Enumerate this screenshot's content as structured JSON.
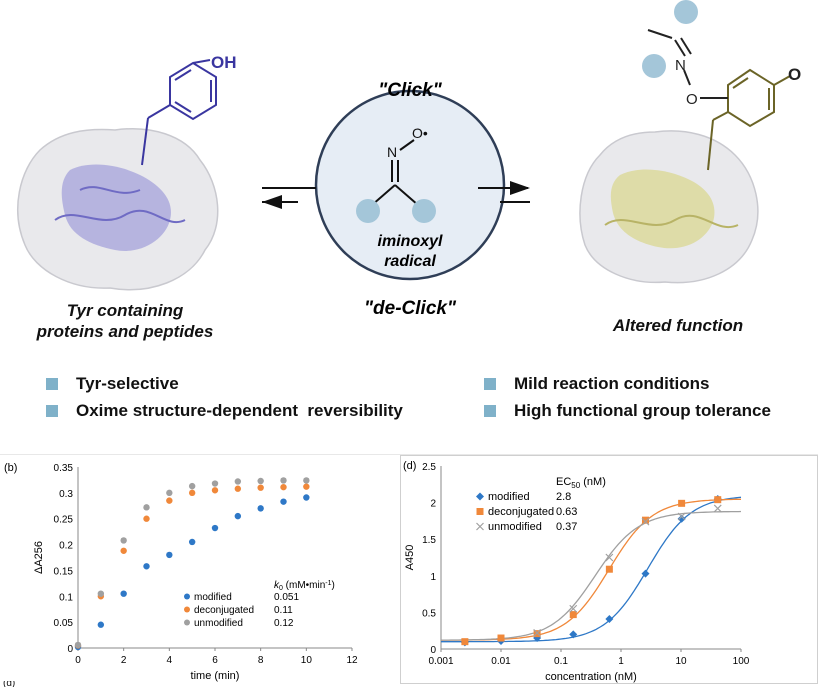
{
  "scheme": {
    "left_caption_line1": "Tyr containing",
    "left_caption_line2": "proteins and peptides",
    "click_label": "\"Click\"",
    "declick_label": "\"de-Click\"",
    "radical_line1": "iminoxyl",
    "radical_line2": "radical",
    "right_caption": "Altered function",
    "oh_label": "OH",
    "n_label": "N",
    "o_label": "O",
    "o_dot_label": "O•",
    "n_label_right": "N",
    "o_label_right": "O",
    "o_ketone_label": "O"
  },
  "bullets": [
    {
      "text": "Tyr-selective"
    },
    {
      "text": "Oxime structure-dependent  reversibility"
    },
    {
      "text": "Mild reaction conditions"
    },
    {
      "text": "High functional group tolerance"
    }
  ],
  "colors": {
    "protein_left": "#8d89d6",
    "protein_right": "#d9d68c",
    "bullet": "#7fb1c9",
    "modified": "#2e78c7",
    "deconjugated": "#f0883a",
    "unmodified": "#a0a0a0"
  },
  "chart_data": [
    {
      "panel_label": "(b)",
      "type": "scatter",
      "xlabel": "time (min)",
      "ylabel": "ΔA256",
      "xlim": [
        0,
        12
      ],
      "ylim": [
        0,
        0.35
      ],
      "xticks": [
        "0",
        "2",
        "4",
        "6",
        "8",
        "10",
        "12"
      ],
      "yticks": [
        "0",
        "0.05",
        "0.1",
        "0.15",
        "0.2",
        "0.25",
        "0.3",
        "0.35"
      ],
      "legend_header": "k",
      "legend_header_sub": "0",
      "legend_header_unit": " (mM•min",
      "legend_header_sup": "-1",
      "legend_header_end": ")",
      "series": [
        {
          "name": "modified",
          "value_label": "0.051",
          "x": [
            0,
            1,
            2,
            3,
            4,
            5,
            6,
            7,
            8,
            9,
            10
          ],
          "y": [
            0.002,
            0.045,
            0.105,
            0.158,
            0.18,
            0.205,
            0.232,
            0.255,
            0.27,
            0.283,
            0.291
          ]
        },
        {
          "name": "deconjugated",
          "value_label": "0.11",
          "x": [
            0,
            1,
            2,
            3,
            4,
            5,
            6,
            7,
            8,
            9,
            10
          ],
          "y": [
            0.005,
            0.1,
            0.188,
            0.25,
            0.285,
            0.3,
            0.305,
            0.308,
            0.31,
            0.311,
            0.312
          ]
        },
        {
          "name": "unmodified",
          "value_label": "0.12",
          "x": [
            0,
            1,
            2,
            3,
            4,
            5,
            6,
            7,
            8,
            9,
            10
          ],
          "y": [
            0.006,
            0.105,
            0.208,
            0.272,
            0.3,
            0.313,
            0.318,
            0.322,
            0.323,
            0.324,
            0.324
          ]
        }
      ]
    },
    {
      "panel_label": "(d)",
      "type": "scatter",
      "xscale": "log",
      "xlabel": "concentration (nM)",
      "ylabel": "A450",
      "xlim": [
        0.001,
        100
      ],
      "ylim": [
        0,
        2.5
      ],
      "xticks": [
        "0.001",
        "0.01",
        "0.1",
        "1",
        "10",
        "100"
      ],
      "yticks": [
        "0",
        "0.5",
        "1",
        "1.5",
        "2",
        "2.5"
      ],
      "legend_header": "EC",
      "legend_header_sub": "50",
      "legend_header_unit": " (nM)",
      "series": [
        {
          "name": "modified",
          "marker": "diamond",
          "value_label": "2.8",
          "x": [
            0.0025,
            0.01,
            0.04,
            0.16,
            0.64,
            2.56,
            10.24,
            40.96
          ],
          "y": [
            0.09,
            0.11,
            0.15,
            0.2,
            0.41,
            1.03,
            1.78,
            2.05
          ]
        },
        {
          "name": "deconjugated",
          "marker": "square",
          "value_label": "0.63",
          "x": [
            0.0025,
            0.01,
            0.04,
            0.16,
            0.64,
            2.56,
            10.24,
            40.96
          ],
          "y": [
            0.1,
            0.15,
            0.21,
            0.47,
            1.09,
            1.76,
            1.99,
            2.04
          ]
        },
        {
          "name": "unmodified",
          "marker": "x",
          "value_label": "0.37",
          "x": [
            0.04,
            0.16,
            0.64,
            2.56,
            10.24,
            40.96
          ],
          "y": [
            0.22,
            0.55,
            1.25,
            1.74,
            1.81,
            1.92
          ]
        }
      ],
      "fits": [
        {
          "series": "modified",
          "bottom": 0.1,
          "top": 2.1,
          "ec50": 2.8,
          "hill": 1.2
        },
        {
          "series": "deconjugated",
          "bottom": 0.12,
          "top": 2.05,
          "ec50": 0.63,
          "hill": 1.2
        },
        {
          "series": "unmodified",
          "bottom": 0.12,
          "top": 1.88,
          "ec50": 0.37,
          "hill": 1.2
        }
      ]
    }
  ],
  "footer_fragment": "(d)"
}
